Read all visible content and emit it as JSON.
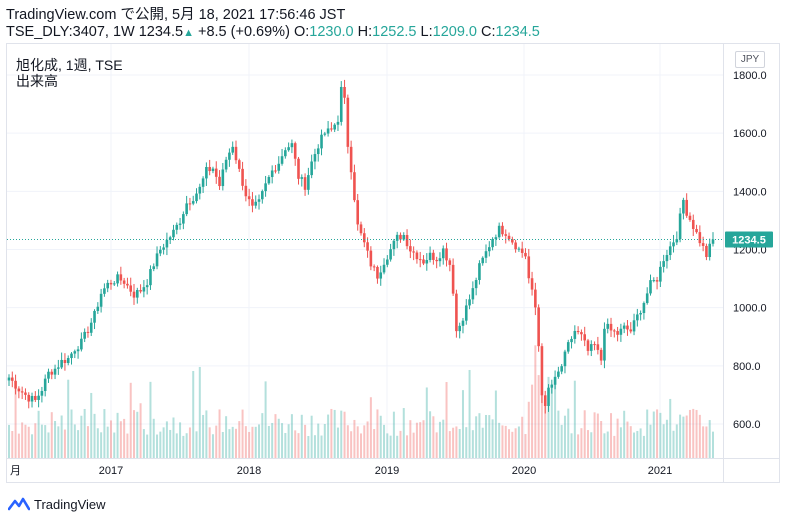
{
  "header": {
    "line1": "TradingView.com で公開, 5月 18, 2021 17:56:46 JST",
    "symbol": "TSE_DLY:3407, 1W",
    "last": "1234.5",
    "change": "+8.5 (+0.69%)",
    "o_label": "O:",
    "o": "1230.0",
    "h_label": "H:",
    "h": "1252.5",
    "l_label": "L:",
    "l": "1209.0",
    "c_label": "C:",
    "c": "1234.5"
  },
  "legend": {
    "title": "旭化成, 1週, TSE",
    "volume": "出来高"
  },
  "currency": "JPY",
  "brand": "TradingView",
  "colors": {
    "up": "#26a69a",
    "down": "#ef5350",
    "grid": "#f0f3fa",
    "last_price_line": "#26a69a"
  },
  "chart_data": {
    "type": "candlestick",
    "interval": "weekly",
    "y_ticks": [
      600,
      800,
      1000,
      1200,
      1400,
      1600,
      1800
    ],
    "y_tick_labels": [
      "600.0",
      "800.0",
      "1000.0",
      "1200.0",
      "1400.0",
      "1600.0",
      "1800.0"
    ],
    "ylim": [
      480,
      1830
    ],
    "x_ticks": [
      "月",
      "2017",
      "2018",
      "2019",
      "2020",
      "2021"
    ],
    "last_price": 1234.5,
    "last_price_label": "1234.5",
    "price_anchors": [
      [
        0,
        760
      ],
      [
        3,
        720
      ],
      [
        6,
        690
      ],
      [
        8,
        680
      ],
      [
        10,
        720
      ],
      [
        12,
        775
      ],
      [
        14,
        790
      ],
      [
        16,
        815
      ],
      [
        18,
        825
      ],
      [
        20,
        860
      ],
      [
        22,
        880
      ],
      [
        24,
        925
      ],
      [
        26,
        975
      ],
      [
        28,
        1050
      ],
      [
        30,
        1080
      ],
      [
        33,
        1100
      ],
      [
        35,
        1090
      ],
      [
        38,
        1045
      ],
      [
        40,
        1060
      ],
      [
        42,
        1090
      ],
      [
        44,
        1150
      ],
      [
        46,
        1200
      ],
      [
        48,
        1230
      ],
      [
        50,
        1260
      ],
      [
        52,
        1300
      ],
      [
        54,
        1360
      ],
      [
        56,
        1380
      ],
      [
        58,
        1410
      ],
      [
        60,
        1470
      ],
      [
        62,
        1480
      ],
      [
        64,
        1420
      ],
      [
        66,
        1510
      ],
      [
        68,
        1560
      ],
      [
        70,
        1470
      ],
      [
        72,
        1390
      ],
      [
        74,
        1340
      ],
      [
        76,
        1360
      ],
      [
        78,
        1420
      ],
      [
        80,
        1470
      ],
      [
        82,
        1500
      ],
      [
        84,
        1550
      ],
      [
        86,
        1560
      ],
      [
        88,
        1450
      ],
      [
        90,
        1420
      ],
      [
        92,
        1500
      ],
      [
        94,
        1560
      ],
      [
        96,
        1600
      ],
      [
        98,
        1610
      ],
      [
        100,
        1650
      ],
      [
        101,
        1750
      ],
      [
        102,
        1710
      ],
      [
        103,
        1560
      ],
      [
        104,
        1480
      ],
      [
        106,
        1280
      ],
      [
        108,
        1220
      ],
      [
        110,
        1150
      ],
      [
        112,
        1110
      ],
      [
        114,
        1160
      ],
      [
        116,
        1200
      ],
      [
        118,
        1240
      ],
      [
        120,
        1250
      ],
      [
        122,
        1200
      ],
      [
        124,
        1180
      ],
      [
        126,
        1160
      ],
      [
        128,
        1180
      ],
      [
        130,
        1170
      ],
      [
        132,
        1200
      ],
      [
        134,
        1150
      ],
      [
        135,
        1060
      ],
      [
        136,
        920
      ],
      [
        137,
        940
      ],
      [
        139,
        1000
      ],
      [
        141,
        1060
      ],
      [
        143,
        1140
      ],
      [
        145,
        1190
      ],
      [
        147,
        1240
      ],
      [
        149,
        1270
      ],
      [
        151,
        1260
      ],
      [
        153,
        1230
      ],
      [
        155,
        1200
      ],
      [
        157,
        1180
      ],
      [
        158,
        1100
      ],
      [
        159,
        1050
      ],
      [
        160,
        1000
      ],
      [
        161,
        870
      ],
      [
        162,
        710
      ],
      [
        163,
        650
      ],
      [
        164,
        720
      ],
      [
        166,
        750
      ],
      [
        168,
        800
      ],
      [
        170,
        870
      ],
      [
        172,
        920
      ],
      [
        174,
        900
      ],
      [
        176,
        850
      ],
      [
        178,
        870
      ],
      [
        180,
        820
      ],
      [
        181,
        940
      ],
      [
        183,
        920
      ],
      [
        185,
        910
      ],
      [
        187,
        930
      ],
      [
        189,
        920
      ],
      [
        191,
        970
      ],
      [
        193,
        1020
      ],
      [
        195,
        1080
      ],
      [
        197,
        1100
      ],
      [
        199,
        1170
      ],
      [
        201,
        1210
      ],
      [
        203,
        1250
      ],
      [
        204,
        1310
      ],
      [
        205,
        1370
      ],
      [
        206,
        1330
      ],
      [
        208,
        1280
      ],
      [
        210,
        1230
      ],
      [
        212,
        1180
      ],
      [
        214,
        1235
      ]
    ]
  }
}
